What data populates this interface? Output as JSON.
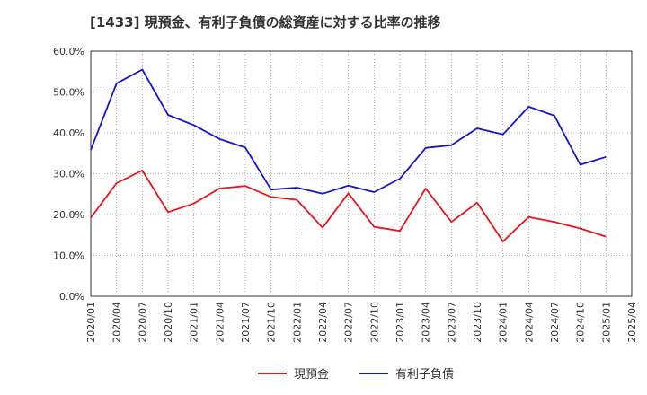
{
  "chart_data": {
    "type": "line",
    "title": "[1433]  現預金、有利子負債の総資産に対する比率の推移",
    "xlabel": "",
    "ylabel": "",
    "ylim": [
      0,
      60
    ],
    "yticks": [
      "0.0%",
      "10.0%",
      "20.0%",
      "30.0%",
      "40.0%",
      "50.0%",
      "60.0%"
    ],
    "x": [
      "2020/01",
      "2020/04",
      "2020/07",
      "2020/10",
      "2021/01",
      "2021/04",
      "2021/07",
      "2021/10",
      "2022/01",
      "2022/04",
      "2022/07",
      "2022/10",
      "2023/01",
      "2023/04",
      "2023/07",
      "2023/10",
      "2024/01",
      "2024/04",
      "2024/07",
      "2024/10",
      "2025/01",
      "2025/04"
    ],
    "grid": true,
    "legend_position": "bottom-center",
    "series": [
      {
        "name": "現預金",
        "color": "#e8141b",
        "values": [
          19.2,
          27.7,
          30.8,
          20.6,
          22.7,
          26.4,
          27.0,
          24.3,
          23.6,
          16.8,
          25.2,
          17.0,
          16.0,
          26.4,
          18.2,
          22.9,
          13.4,
          19.4,
          18.2,
          16.6,
          14.6,
          null
        ]
      },
      {
        "name": "有利子負債",
        "color": "#1515cc",
        "values": [
          35.8,
          52.1,
          55.5,
          44.4,
          41.9,
          38.5,
          36.4,
          26.1,
          26.6,
          25.1,
          27.1,
          25.5,
          28.8,
          36.3,
          37.0,
          41.1,
          39.6,
          46.4,
          44.2,
          32.2,
          34.1,
          null
        ]
      }
    ]
  }
}
